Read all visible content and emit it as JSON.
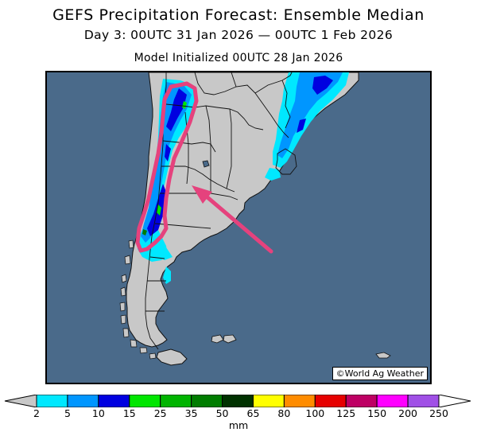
{
  "title": {
    "line1": "GEFS Precipitation Forecast: Ensemble Median",
    "line2": "Day 3: 00UTC 31 Jan 2026 — 00UTC 1 Feb 2026",
    "line3": "Model Initialized 00UTC 28 Jan 2026"
  },
  "map": {
    "region": "Southern South America",
    "ocean_color": "#4a6a8a",
    "land_color": "#c8c8c8",
    "annotation_color": "#e5427d",
    "credit": "©World Ag Weather"
  },
  "legend": {
    "units": "mm",
    "ticks": [
      "2",
      "5",
      "10",
      "15",
      "25",
      "35",
      "50",
      "65",
      "80",
      "100",
      "125",
      "150",
      "200",
      "250"
    ],
    "under_color": "#c8c8c8",
    "over_color": "#ffffff",
    "colors": [
      "#00e8ff",
      "#0096ff",
      "#0000e0",
      "#00e600",
      "#00b400",
      "#007d00",
      "#003200",
      "#ffff00",
      "#ff8c00",
      "#e60000",
      "#be0064",
      "#ff00ff",
      "#a050e6"
    ]
  }
}
